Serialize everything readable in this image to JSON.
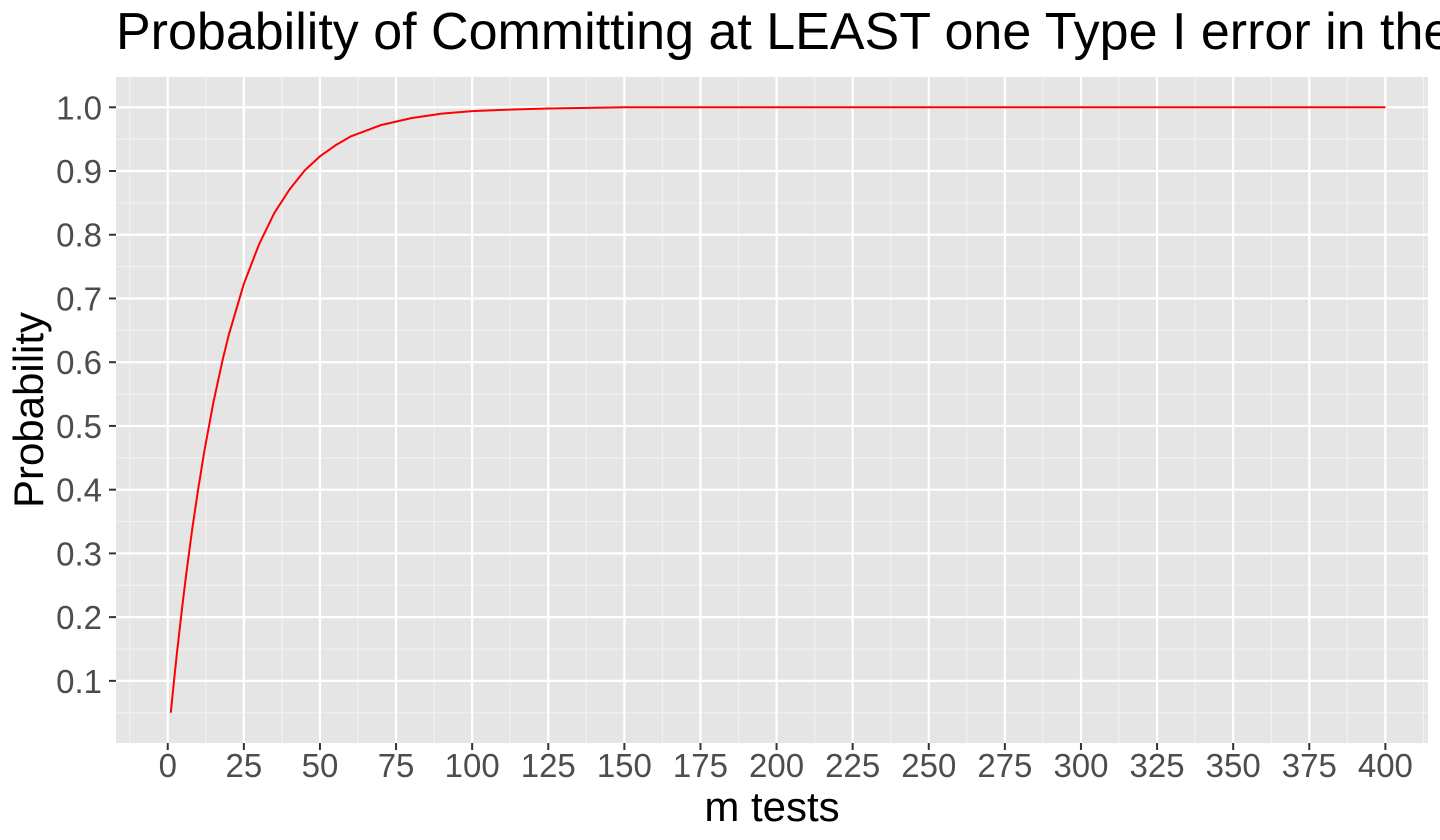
{
  "chart_data": {
    "type": "line",
    "title": "Probability of Committing at LEAST one Type I error in the",
    "xlabel": "m tests",
    "ylabel": "Probability",
    "xlim": [
      -17,
      414
    ],
    "ylim": [
      0.0025,
      1.0475
    ],
    "x_ticks": [
      0,
      25,
      50,
      75,
      100,
      125,
      150,
      175,
      200,
      225,
      250,
      275,
      300,
      325,
      350,
      375,
      400
    ],
    "y_ticks": [
      0.1,
      0.2,
      0.3,
      0.4,
      0.5,
      0.6,
      0.7,
      0.8,
      0.9,
      1.0
    ],
    "y_tick_labels": [
      "0.1",
      "0.2",
      "0.3",
      "0.4",
      "0.5",
      "0.6",
      "0.7",
      "0.8",
      "0.9",
      "1.0"
    ],
    "grid": true,
    "legend": "none",
    "colors": {
      "panel_background": "#e5e5e5",
      "grid_major": "#ffffff",
      "grid_minor": "#f2f2f2",
      "line": "#ff0000"
    },
    "series": [
      {
        "x": [
          1,
          2,
          3,
          4,
          5,
          6,
          8,
          10,
          12,
          15,
          18,
          20,
          25,
          30,
          35,
          40,
          45,
          50,
          55,
          60,
          70,
          80,
          90,
          100,
          110,
          125,
          150,
          175,
          200,
          250,
          300,
          350,
          400
        ],
        "y": [
          0.05,
          0.0975,
          0.143,
          0.185,
          0.226,
          0.265,
          0.337,
          0.401,
          0.46,
          0.537,
          0.603,
          0.642,
          0.723,
          0.785,
          0.834,
          0.871,
          0.901,
          0.923,
          0.94,
          0.954,
          0.972,
          0.983,
          0.99,
          0.994,
          0.996,
          0.998,
          1.0,
          1.0,
          1.0,
          1.0,
          1.0,
          1.0,
          1.0
        ]
      }
    ]
  }
}
